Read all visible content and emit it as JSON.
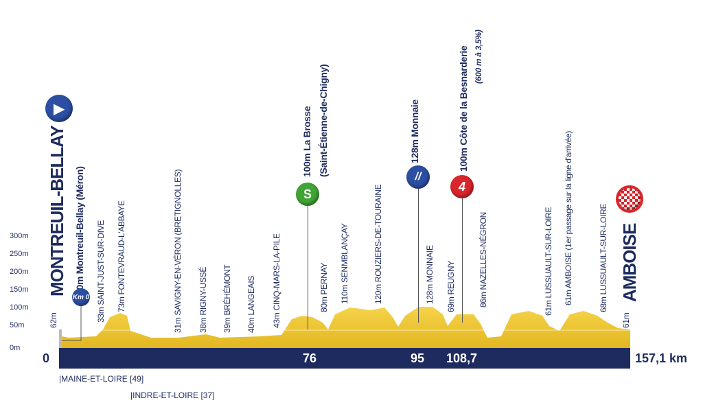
{
  "start": {
    "name": "MONTREUIL-BELLAY",
    "alt": "62m",
    "km0_label": "Km 0",
    "km0_text": "50m Montreuil-Bellay (Méron)"
  },
  "finish": {
    "name": "AMBOISE",
    "alt": "61m"
  },
  "y_axis": [
    "300m",
    "250m",
    "200m",
    "150m",
    "100m",
    "50m",
    "0m"
  ],
  "km_axis": {
    "start": "0",
    "sprint1": "76",
    "sprint2": "95",
    "climb": "108,7",
    "end": "157,1 km"
  },
  "places": [
    "33m SAINT-JUST-SUR-DIVE",
    "73m FONTEVRAUD-L'ABBAYE",
    "31m SAVIGNY-EN-VÉRON (BRETIGNOLLES)",
    "38m RIGNY-USSÉ",
    "39m BRÉHÉMONT",
    "40m LANGEAIS",
    "43m CINQ-MARS-LA-PILE",
    "80m PERNAY",
    "110m SENMBLANÇAY",
    "120m ROUZIERS-DE-TOURAINE",
    "128m MONNAIE",
    "69m REUGNY",
    "86m NAZELLES-NÉGRON",
    "61m LUSSUAULT-SUR-LOIRE",
    "61m AMBOISE (1er passage sur la ligne d'arrivée)",
    "68m LUSSUAULT-SUR-LOIRE"
  ],
  "sprint_points": {
    "icon": "S",
    "line1": "100m La Brosse",
    "line2": "(Saint-Étienne-de-Chigny)"
  },
  "bonus": {
    "line": "128m Monnaie"
  },
  "climb": {
    "icon": "4",
    "line1": "100m Côte de la Besnarderie",
    "line2": "(600 m à 3,5%)"
  },
  "departments": [
    "|MAINE-ET-LOIRE [49]",
    "|INDRE-ET-LOIRE [37]"
  ],
  "colors": {
    "navy": "#1d2b5e",
    "profile": "#f0c731",
    "green": "#3fa535",
    "red": "#d9262c",
    "blue": "#2c4fa3"
  }
}
